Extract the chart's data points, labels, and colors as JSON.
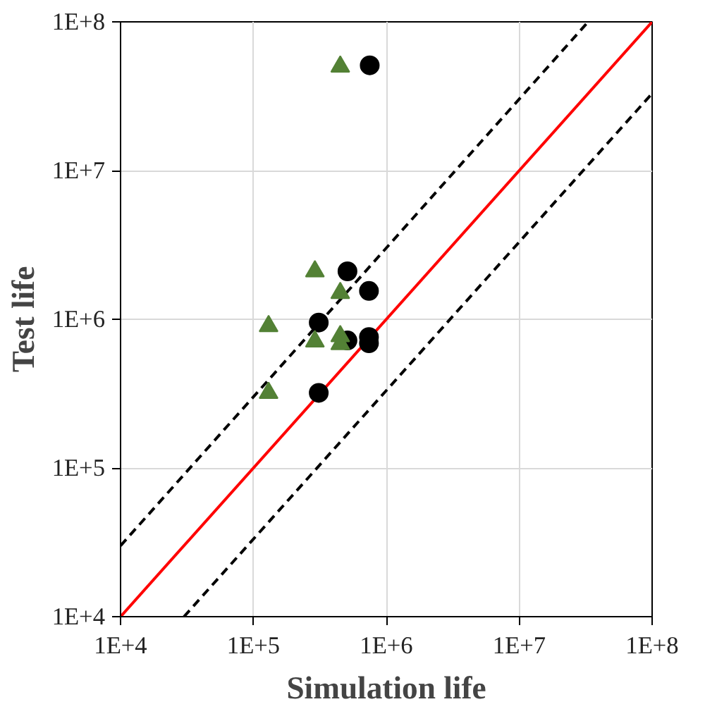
{
  "chart_data": {
    "type": "scatter",
    "xlabel": "Simulation life",
    "ylabel": "Test life",
    "log": "xy",
    "grid": true,
    "xlim": [
      10000,
      100000000
    ],
    "ylim": [
      10000,
      100000000
    ],
    "xticks": [
      {
        "value": 10000,
        "label": "1E+4"
      },
      {
        "value": 100000,
        "label": "1E+5"
      },
      {
        "value": 1000000,
        "label": "1E+6"
      },
      {
        "value": 10000000,
        "label": "1E+7"
      },
      {
        "value": 100000000,
        "label": "1E+8"
      }
    ],
    "yticks": [
      {
        "value": 10000,
        "label": "1E+4"
      },
      {
        "value": 100000,
        "label": "1E+5"
      },
      {
        "value": 1000000,
        "label": "1E+6"
      },
      {
        "value": 10000000,
        "label": "1E+7"
      },
      {
        "value": 100000000,
        "label": "1E+8"
      }
    ],
    "series": [
      {
        "type": "line",
        "color": "#ff0000",
        "line_style": "solid",
        "x": [
          10000,
          100000000
        ],
        "values": [
          10000,
          100000000
        ]
      },
      {
        "type": "line",
        "color": "#000000",
        "line_style": "dashed",
        "x": [
          10000,
          33000000
        ],
        "values": [
          30000,
          100000000
        ]
      },
      {
        "type": "line",
        "color": "#000000",
        "line_style": "dashed",
        "x": [
          30000,
          100000000
        ],
        "values": [
          10000,
          33000000
        ]
      },
      {
        "color": "#000000",
        "marker": "circle",
        "x": [
          750000,
          510000,
          740000,
          310000,
          510000,
          740000,
          740000,
          310000
        ],
        "values": [
          51000000,
          2100000,
          1550000,
          950000,
          720000,
          760000,
          690000,
          320000
        ]
      },
      {
        "color": "#538135",
        "marker": "triangle",
        "x": [
          450000,
          290000,
          450000,
          130000,
          290000,
          450000,
          450000,
          130000
        ],
        "values": [
          50000000,
          2100000,
          1500000,
          900000,
          710000,
          770000,
          680000,
          320000
        ]
      }
    ]
  }
}
